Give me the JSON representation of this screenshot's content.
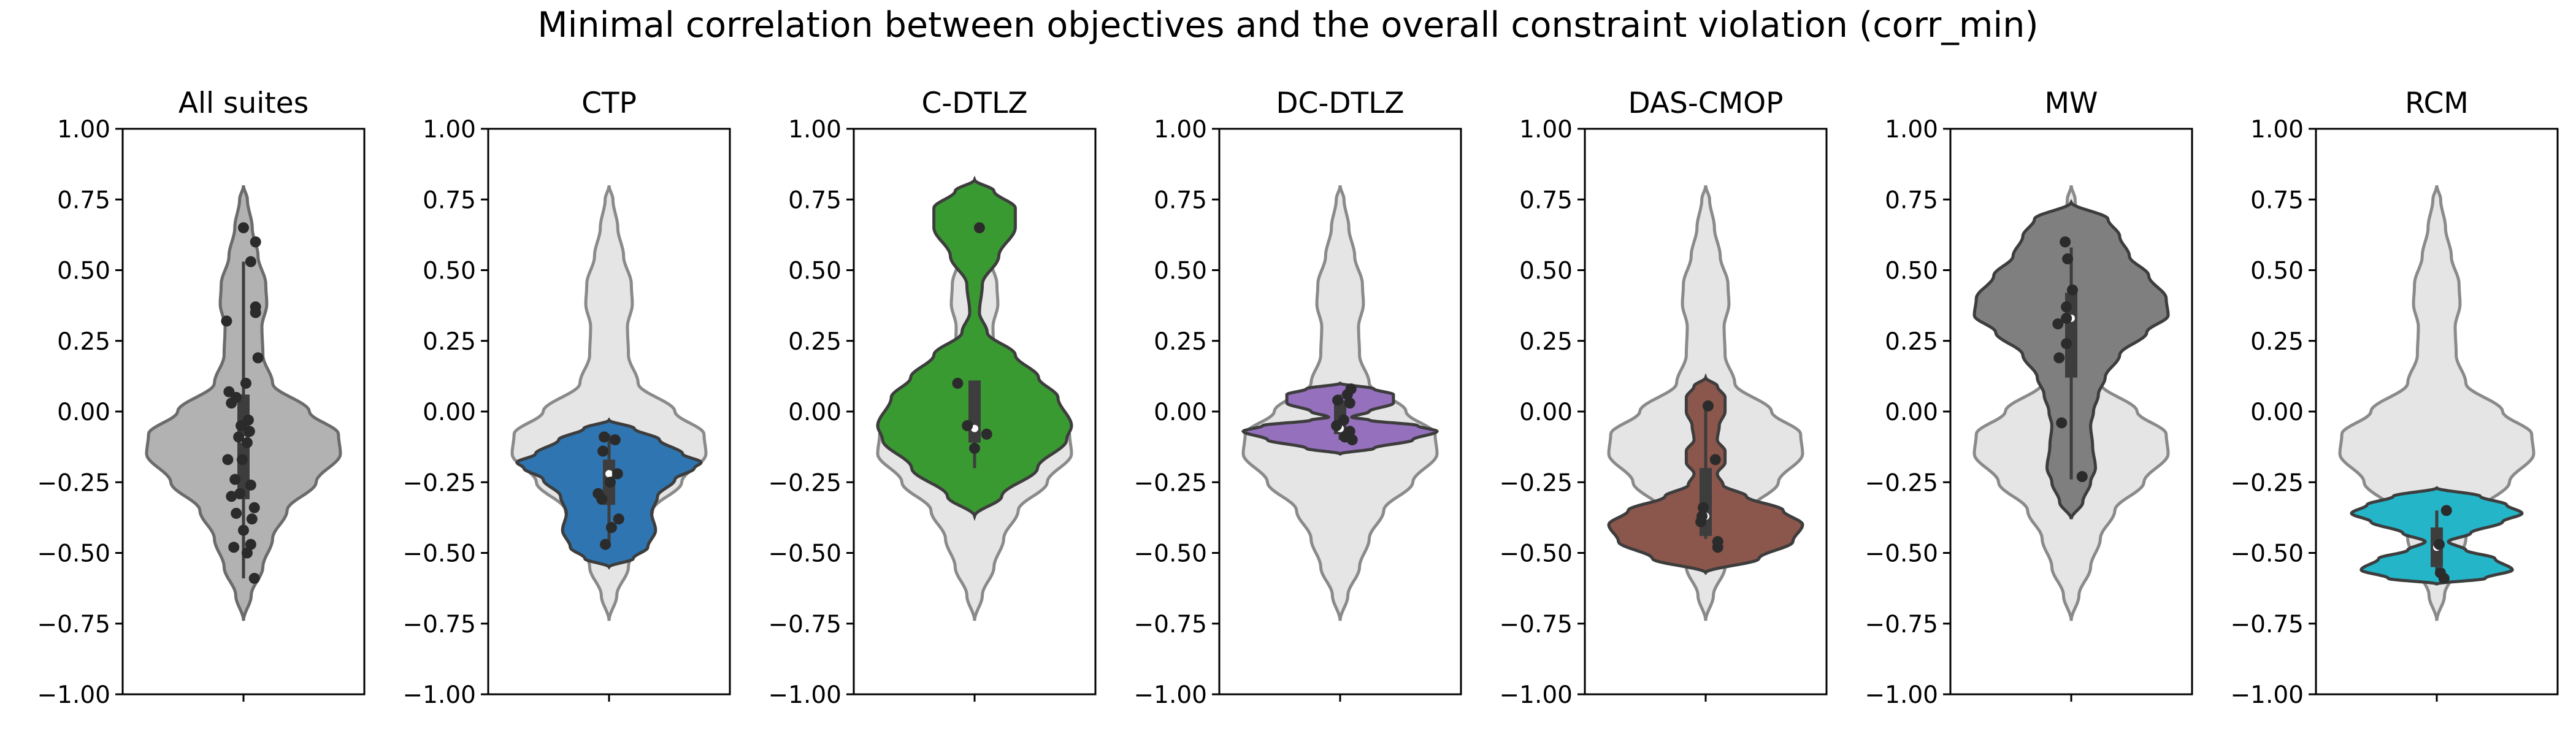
{
  "title": "Minimal correlation between objectives and the overall constraint violation (corr_min)",
  "chart_data": {
    "type": "violin",
    "ylim": [
      -1.0,
      1.0
    ],
    "yticks": [
      "1.00",
      "0.75",
      "0.50",
      "0.25",
      "0.00",
      "−0.25",
      "−0.50",
      "−0.75",
      "−1.00"
    ],
    "ytick_values": [
      1.0,
      0.75,
      0.5,
      0.25,
      0.0,
      -0.25,
      -0.5,
      -0.75,
      -1.0
    ],
    "grid": false,
    "background_distribution": {
      "fill": "#e5e5e5",
      "edge": "#8a8a8a",
      "range": [
        -0.74,
        0.8
      ],
      "profile": [
        [
          -0.74,
          0.0
        ],
        [
          -0.65,
          0.08
        ],
        [
          -0.55,
          0.2
        ],
        [
          -0.45,
          0.3
        ],
        [
          -0.35,
          0.45
        ],
        [
          -0.25,
          0.75
        ],
        [
          -0.15,
          1.0
        ],
        [
          -0.08,
          0.98
        ],
        [
          0.0,
          0.68
        ],
        [
          0.1,
          0.3
        ],
        [
          0.2,
          0.2
        ],
        [
          0.3,
          0.19
        ],
        [
          0.38,
          0.24
        ],
        [
          0.45,
          0.23
        ],
        [
          0.55,
          0.15
        ],
        [
          0.65,
          0.09
        ],
        [
          0.75,
          0.04
        ],
        [
          0.8,
          0.0
        ]
      ]
    },
    "panels": [
      {
        "title": "All suites",
        "color": "#b2b2b2",
        "edge": "#6b6b6b",
        "show_background": false,
        "range": [
          -0.74,
          0.8
        ],
        "profile": [
          [
            -0.74,
            0.0
          ],
          [
            -0.65,
            0.08
          ],
          [
            -0.55,
            0.2
          ],
          [
            -0.45,
            0.3
          ],
          [
            -0.35,
            0.45
          ],
          [
            -0.25,
            0.75
          ],
          [
            -0.15,
            1.0
          ],
          [
            -0.08,
            0.98
          ],
          [
            0.0,
            0.68
          ],
          [
            0.1,
            0.3
          ],
          [
            0.2,
            0.2
          ],
          [
            0.3,
            0.19
          ],
          [
            0.38,
            0.24
          ],
          [
            0.45,
            0.23
          ],
          [
            0.55,
            0.15
          ],
          [
            0.65,
            0.09
          ],
          [
            0.75,
            0.04
          ],
          [
            0.8,
            0.0
          ]
        ],
        "whisker": [
          -0.59,
          0.53
        ],
        "box": [
          -0.31,
          0.06
        ],
        "median": -0.1,
        "points": [
          [
            0.0,
            0.65
          ],
          [
            0.1,
            0.6
          ],
          [
            0.06,
            0.53
          ],
          [
            0.1,
            0.37
          ],
          [
            0.1,
            0.35
          ],
          [
            -0.14,
            0.32
          ],
          [
            0.12,
            0.19
          ],
          [
            0.02,
            0.1
          ],
          [
            -0.12,
            0.07
          ],
          [
            -0.06,
            0.05
          ],
          [
            -0.1,
            0.03
          ],
          [
            0.04,
            -0.03
          ],
          [
            -0.02,
            -0.05
          ],
          [
            0.05,
            -0.07
          ],
          [
            -0.04,
            -0.09
          ],
          [
            0.03,
            -0.11
          ],
          [
            -0.13,
            -0.17
          ],
          [
            -0.01,
            -0.17
          ],
          [
            -0.07,
            -0.24
          ],
          [
            0.06,
            -0.26
          ],
          [
            -0.03,
            -0.29
          ],
          [
            -0.1,
            -0.3
          ],
          [
            0.09,
            -0.34
          ],
          [
            -0.06,
            -0.36
          ],
          [
            0.07,
            -0.38
          ],
          [
            0.0,
            -0.42
          ],
          [
            -0.08,
            -0.48
          ],
          [
            0.06,
            -0.47
          ],
          [
            0.03,
            -0.5
          ],
          [
            0.09,
            -0.59
          ]
        ]
      },
      {
        "title": "CTP",
        "color": "#2e75b1",
        "edge": "#3d3d3d",
        "show_background": true,
        "range": [
          -0.55,
          -0.03
        ],
        "profile": [
          [
            -0.55,
            0.0
          ],
          [
            -0.52,
            0.25
          ],
          [
            -0.48,
            0.4
          ],
          [
            -0.42,
            0.48
          ],
          [
            -0.36,
            0.44
          ],
          [
            -0.3,
            0.5
          ],
          [
            -0.24,
            0.68
          ],
          [
            -0.2,
            0.88
          ],
          [
            -0.18,
            0.95
          ],
          [
            -0.15,
            0.76
          ],
          [
            -0.1,
            0.52
          ],
          [
            -0.06,
            0.26
          ],
          [
            -0.03,
            0.0
          ]
        ],
        "whisker": [
          -0.48,
          -0.08
        ],
        "box": [
          -0.33,
          -0.17
        ],
        "median": -0.22,
        "points": [
          [
            -0.04,
            -0.09
          ],
          [
            0.05,
            -0.1
          ],
          [
            -0.05,
            -0.14
          ],
          [
            0.07,
            -0.22
          ],
          [
            0.01,
            -0.25
          ],
          [
            -0.09,
            -0.29
          ],
          [
            -0.06,
            -0.31
          ],
          [
            0.08,
            -0.38
          ],
          [
            -0.03,
            -0.47
          ],
          [
            0.02,
            -0.41
          ]
        ]
      },
      {
        "title": "C-DTLZ",
        "color": "#3a9a32",
        "edge": "#3d3d3d",
        "show_background": true,
        "range": [
          -0.37,
          0.82
        ],
        "profile": [
          [
            -0.37,
            0.0
          ],
          [
            -0.3,
            0.28
          ],
          [
            -0.2,
            0.65
          ],
          [
            -0.1,
            0.95
          ],
          [
            -0.05,
            1.0
          ],
          [
            0.05,
            0.86
          ],
          [
            0.12,
            0.66
          ],
          [
            0.2,
            0.42
          ],
          [
            0.28,
            0.13
          ],
          [
            0.35,
            0.05
          ],
          [
            0.45,
            0.08
          ],
          [
            0.55,
            0.25
          ],
          [
            0.65,
            0.42
          ],
          [
            0.72,
            0.42
          ],
          [
            0.78,
            0.2
          ],
          [
            0.82,
            0.0
          ]
        ],
        "whisker": [
          -0.2,
          0.1
        ],
        "box": [
          -0.11,
          0.11
        ],
        "median": -0.06,
        "points": [
          [
            0.04,
            0.65
          ],
          [
            -0.14,
            0.1
          ],
          [
            -0.06,
            -0.05
          ],
          [
            0.1,
            -0.08
          ],
          [
            0.0,
            -0.13
          ]
        ]
      },
      {
        "title": "DC-DTLZ",
        "color": "#9470bd",
        "edge": "#3d3d3d",
        "show_background": true,
        "range": [
          -0.15,
          0.1
        ],
        "profile": [
          [
            -0.15,
            0.0
          ],
          [
            -0.13,
            0.35
          ],
          [
            -0.1,
            0.75
          ],
          [
            -0.07,
            1.0
          ],
          [
            -0.05,
            0.8
          ],
          [
            -0.03,
            0.3
          ],
          [
            -0.02,
            0.12
          ],
          [
            0.0,
            0.3
          ],
          [
            0.03,
            0.55
          ],
          [
            0.06,
            0.55
          ],
          [
            0.08,
            0.35
          ],
          [
            0.1,
            0.0
          ]
        ],
        "whisker": [
          -0.1,
          0.06
        ],
        "box": [
          -0.08,
          0.04
        ],
        "median": -0.06,
        "points": [
          [
            0.09,
            0.08
          ],
          [
            0.06,
            0.06
          ],
          [
            -0.02,
            0.04
          ],
          [
            0.08,
            0.03
          ],
          [
            0.03,
            -0.03
          ],
          [
            -0.03,
            -0.05
          ],
          [
            0.08,
            -0.07
          ],
          [
            0.04,
            -0.09
          ],
          [
            0.1,
            -0.1
          ]
        ]
      },
      {
        "title": "DAS-CMOP",
        "color": "#8b564b",
        "edge": "#3d3d3d",
        "show_background": true,
        "range": [
          -0.57,
          0.12
        ],
        "profile": [
          [
            -0.57,
            0.0
          ],
          [
            -0.52,
            0.55
          ],
          [
            -0.46,
            0.9
          ],
          [
            -0.4,
            1.0
          ],
          [
            -0.35,
            0.8
          ],
          [
            -0.3,
            0.42
          ],
          [
            -0.26,
            0.18
          ],
          [
            -0.22,
            0.12
          ],
          [
            -0.18,
            0.2
          ],
          [
            -0.14,
            0.2
          ],
          [
            -0.1,
            0.12
          ],
          [
            -0.05,
            0.14
          ],
          [
            0.0,
            0.2
          ],
          [
            0.05,
            0.2
          ],
          [
            0.09,
            0.12
          ],
          [
            0.12,
            0.0
          ]
        ],
        "whisker": [
          -0.45,
          0.03
        ],
        "box": [
          -0.44,
          -0.2
        ],
        "median": -0.37,
        "points": [
          [
            0.02,
            0.02
          ],
          [
            0.08,
            -0.17
          ],
          [
            -0.02,
            -0.34
          ],
          [
            -0.03,
            -0.37
          ],
          [
            -0.04,
            -0.39
          ],
          [
            0.1,
            -0.46
          ],
          [
            0.1,
            -0.48
          ]
        ]
      },
      {
        "title": "MW",
        "color": "#7f7f7f",
        "edge": "#3d3d3d",
        "show_background": true,
        "range": [
          -0.38,
          0.74
        ],
        "profile": [
          [
            -0.38,
            0.0
          ],
          [
            -0.32,
            0.12
          ],
          [
            -0.25,
            0.2
          ],
          [
            -0.2,
            0.25
          ],
          [
            -0.12,
            0.22
          ],
          [
            -0.05,
            0.2
          ],
          [
            0.0,
            0.23
          ],
          [
            0.06,
            0.28
          ],
          [
            0.12,
            0.35
          ],
          [
            0.2,
            0.5
          ],
          [
            0.28,
            0.78
          ],
          [
            0.34,
            1.0
          ],
          [
            0.4,
            0.98
          ],
          [
            0.48,
            0.8
          ],
          [
            0.55,
            0.6
          ],
          [
            0.62,
            0.5
          ],
          [
            0.68,
            0.38
          ],
          [
            0.74,
            0.0
          ]
        ],
        "whisker": [
          -0.24,
          0.58
        ],
        "box": [
          0.12,
          0.42
        ],
        "median": 0.33,
        "points": [
          [
            -0.05,
            0.6
          ],
          [
            -0.03,
            0.54
          ],
          [
            0.01,
            0.43
          ],
          [
            -0.11,
            0.31
          ],
          [
            -0.04,
            0.33
          ],
          [
            -0.1,
            0.19
          ],
          [
            -0.04,
            0.24
          ],
          [
            -0.08,
            -0.04
          ],
          [
            0.09,
            -0.23
          ],
          [
            -0.04,
            0.37
          ]
        ]
      },
      {
        "title": "RCM",
        "color": "#24b5c9",
        "edge": "#3d3d3d",
        "show_background": true,
        "range": [
          -0.61,
          -0.27
        ],
        "profile": [
          [
            -0.61,
            0.0
          ],
          [
            -0.59,
            0.5
          ],
          [
            -0.56,
            0.78
          ],
          [
            -0.52,
            0.6
          ],
          [
            -0.49,
            0.3
          ],
          [
            -0.46,
            0.12
          ],
          [
            -0.43,
            0.35
          ],
          [
            -0.39,
            0.68
          ],
          [
            -0.36,
            0.88
          ],
          [
            -0.33,
            0.72
          ],
          [
            -0.3,
            0.45
          ],
          [
            -0.27,
            0.0
          ]
        ],
        "whisker": [
          -0.58,
          -0.35
        ],
        "box": [
          -0.55,
          -0.41
        ],
        "median": -0.48,
        "points": [
          [
            0.08,
            -0.35
          ],
          [
            0.02,
            -0.47
          ],
          [
            0.03,
            -0.57
          ],
          [
            0.06,
            -0.59
          ]
        ]
      }
    ]
  }
}
